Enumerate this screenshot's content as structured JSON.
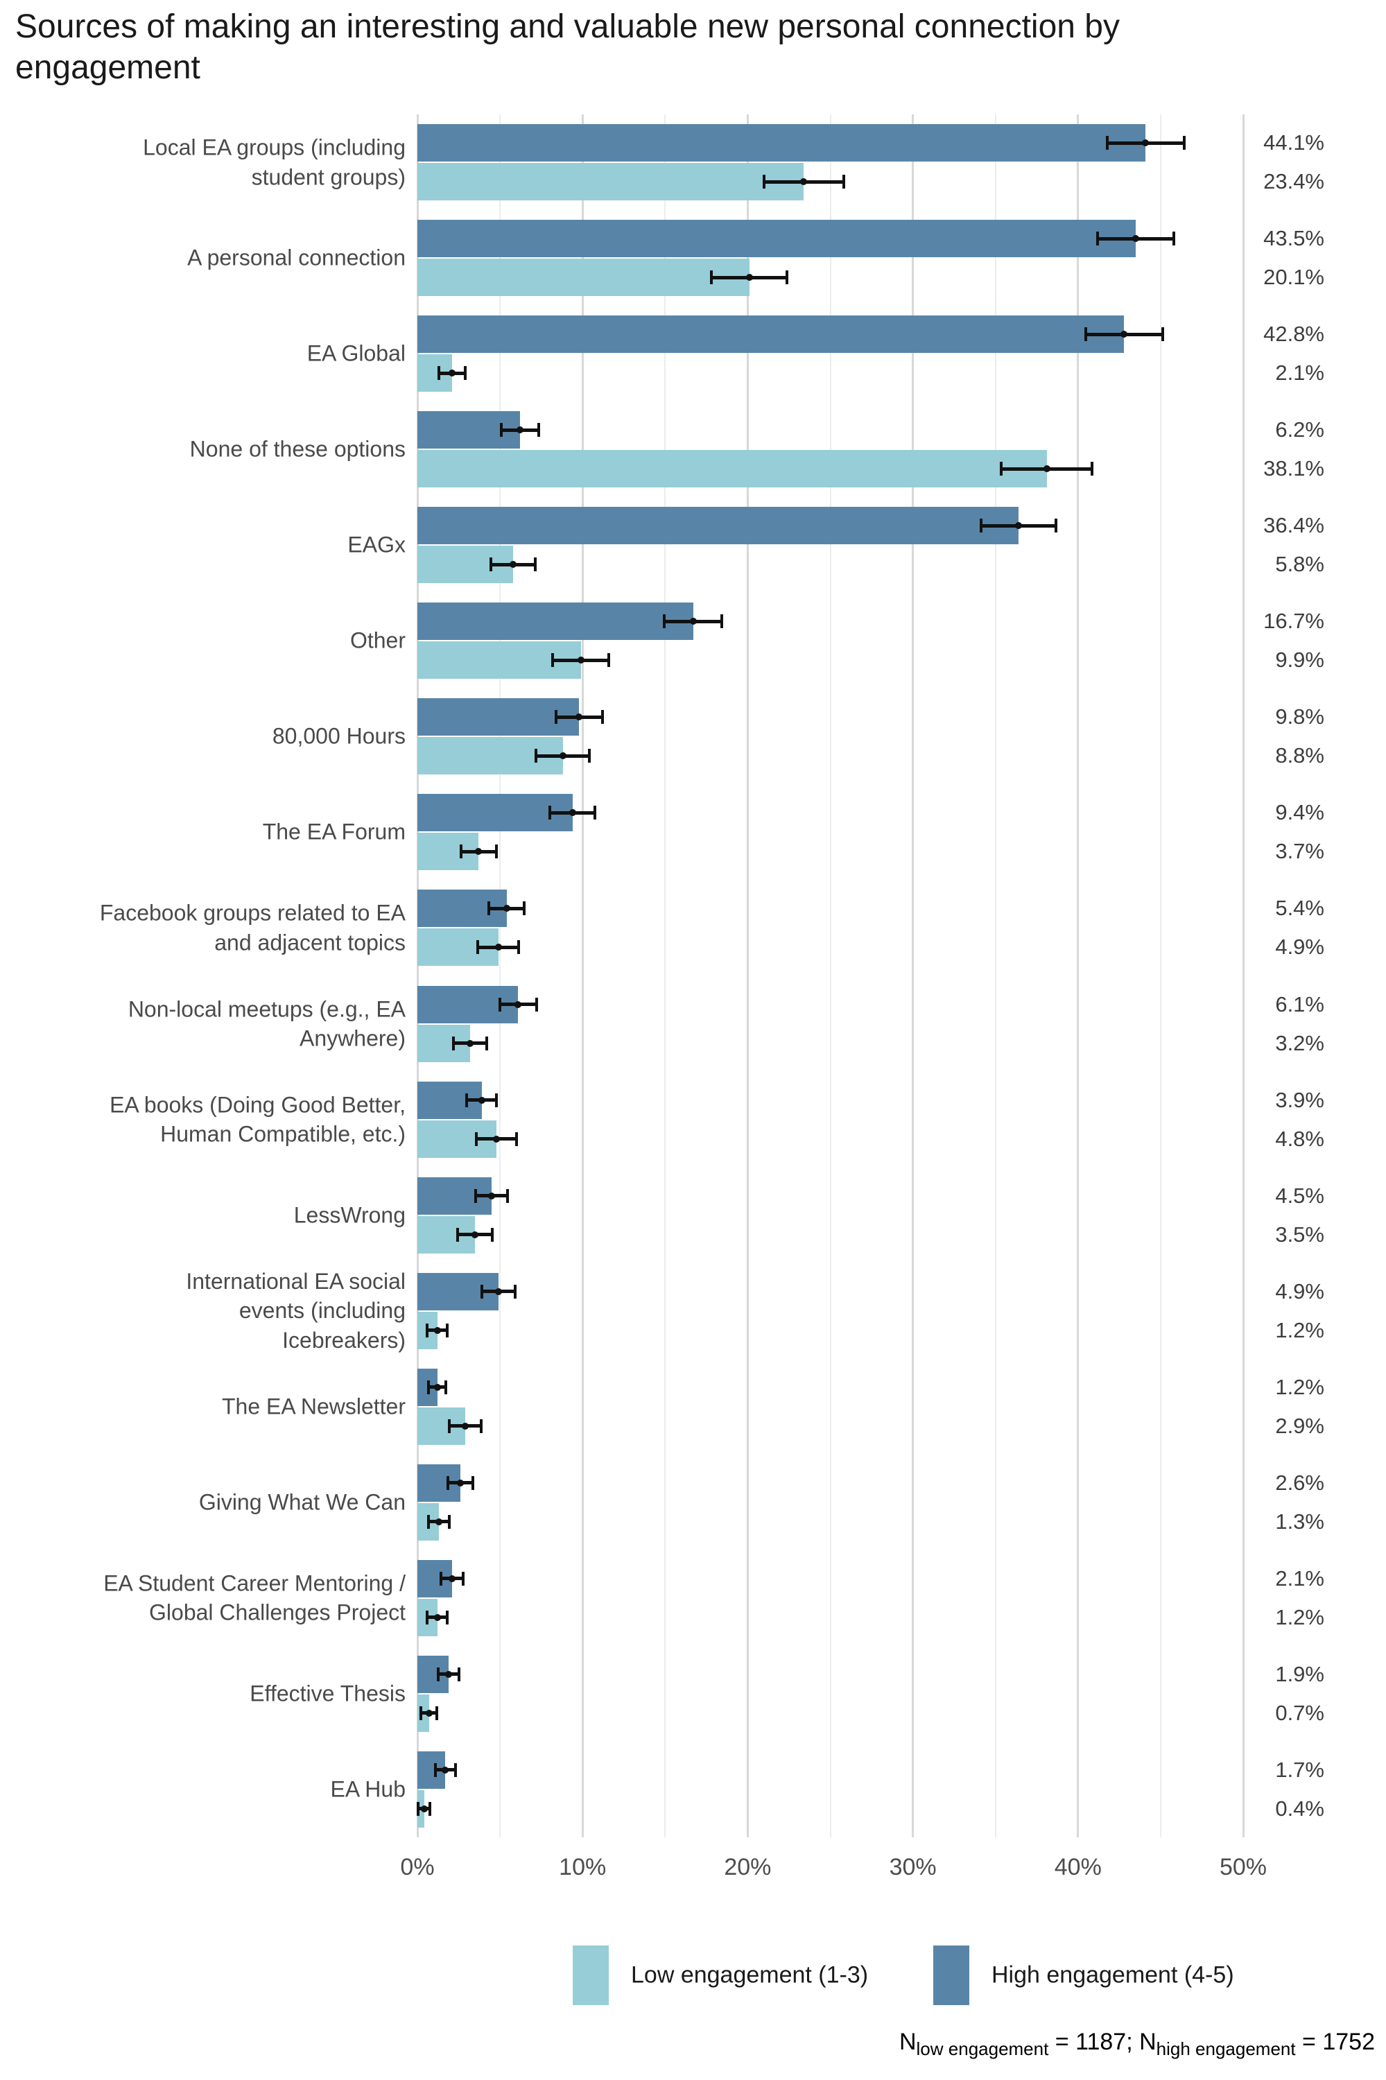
{
  "title": "Sources of making an interesting and valuable new personal connection by\nengagement",
  "chart_data": {
    "type": "bar",
    "orientation": "horizontal",
    "title": "Sources of making an interesting and valuable new personal connection by engagement",
    "xlabel": "",
    "ylabel": "",
    "x_axis": {
      "tick_labels": [
        "0%",
        "10%",
        "20%",
        "30%",
        "40%",
        "50%"
      ],
      "tick_values": [
        0,
        10,
        20,
        30,
        40,
        50
      ],
      "range": [
        0,
        51.7
      ],
      "minor_grid_step": 5,
      "grid": "on"
    },
    "categories": [
      "Local EA groups (including\nstudent groups)",
      "A personal connection",
      "EA Global",
      "None of these options",
      "EAGx",
      "Other",
      "80,000 Hours",
      "The EA Forum",
      "Facebook groups related to EA\nand adjacent topics",
      "Non-local meetups (e.g., EA\nAnywhere)",
      "EA books (Doing Good Better,\nHuman Compatible, etc.)",
      "LessWrong",
      "International EA social\nevents (including\nIcebreakers)",
      "The EA Newsletter",
      "Giving What We Can",
      "EA Student Career Mentoring /\nGlobal Challenges Project",
      "Effective Thesis",
      "EA Hub"
    ],
    "series": [
      {
        "name": "High engagement (4-5)",
        "color": "#5885a7",
        "n": 1752,
        "bar_position": "top",
        "values": [
          44.1,
          43.5,
          42.8,
          6.2,
          36.4,
          16.7,
          9.8,
          9.4,
          5.4,
          6.1,
          3.9,
          4.5,
          4.9,
          1.2,
          2.6,
          2.1,
          1.9,
          1.7
        ]
      },
      {
        "name": "Low engagement (1-3)",
        "color": "#96cdd7",
        "n": 1187,
        "bar_position": "bottom",
        "values": [
          23.4,
          20.1,
          2.1,
          38.1,
          5.8,
          9.9,
          8.8,
          3.7,
          4.9,
          3.2,
          4.8,
          3.5,
          1.2,
          2.9,
          1.3,
          1.2,
          0.7,
          0.4
        ]
      }
    ],
    "value_label_format": "{value}%",
    "error_bars": {
      "type": "95% confidence interval",
      "color": "#111111"
    },
    "legend_position": "bottom"
  },
  "legend": {
    "items": [
      {
        "label": "Low engagement (1-3)",
        "color": "#96cdd7"
      },
      {
        "label": "High engagement (4-5)",
        "color": "#5885a7"
      }
    ]
  },
  "footnote": {
    "segments": [
      {
        "text": "N"
      },
      {
        "sub": "low engagement"
      },
      {
        "text": " = 1187; N"
      },
      {
        "sub": "high engagement"
      },
      {
        "text": " = 1752"
      }
    ]
  }
}
